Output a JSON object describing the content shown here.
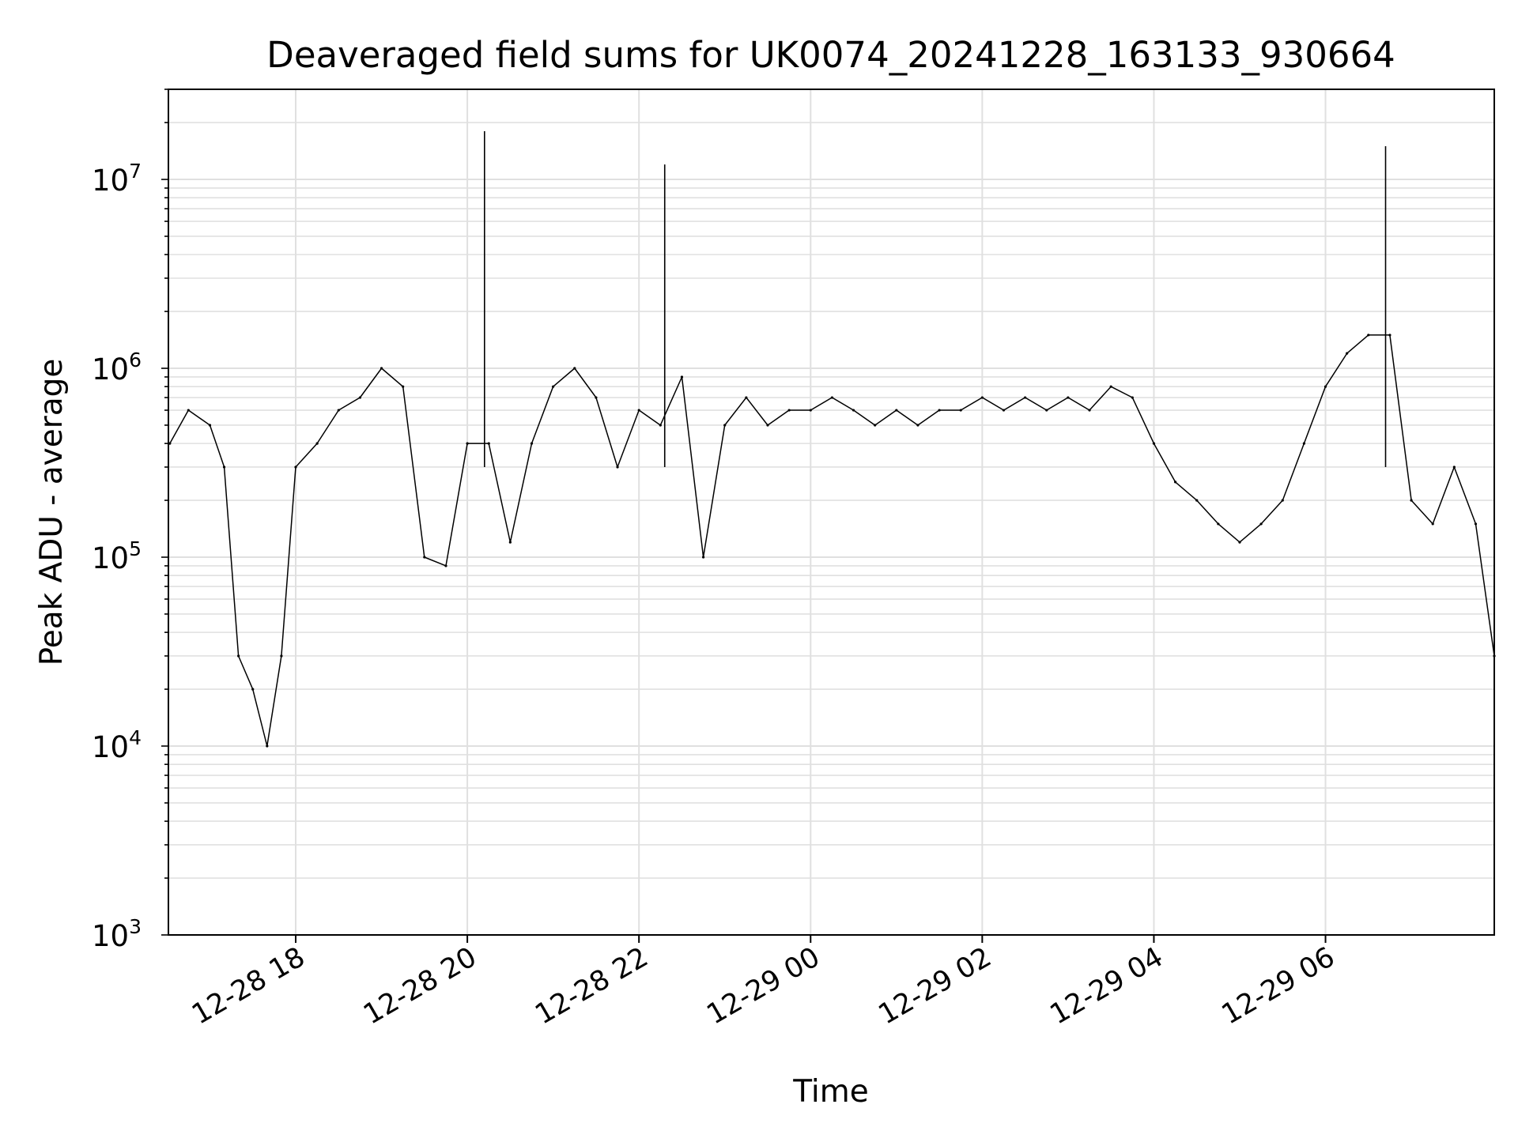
{
  "chart_data": {
    "type": "line",
    "title": "Deaveraged field sums for UK0074_20241228_163133_930664",
    "xlabel": "Time",
    "ylabel": "Peak ADU - average",
    "y_scale": "log",
    "ylim": [
      1000,
      30000000
    ],
    "xlim": [
      "2024-12-28 16:31",
      "2024-12-29 07:58"
    ],
    "x_ticks": [
      {
        "label": "12-28 18",
        "value": "2024-12-28 18:00"
      },
      {
        "label": "12-28 20",
        "value": "2024-12-28 20:00"
      },
      {
        "label": "12-28 22",
        "value": "2024-12-28 22:00"
      },
      {
        "label": "12-29 00",
        "value": "2024-12-29 00:00"
      },
      {
        "label": "12-29 02",
        "value": "2024-12-29 02:00"
      },
      {
        "label": "12-29 04",
        "value": "2024-12-29 04:00"
      },
      {
        "label": "12-29 06",
        "value": "2024-12-29 06:00"
      }
    ],
    "y_ticks": [
      {
        "base": "10",
        "exp": "3",
        "value": 1000
      },
      {
        "base": "10",
        "exp": "4",
        "value": 10000
      },
      {
        "base": "10",
        "exp": "5",
        "value": 100000
      },
      {
        "base": "10",
        "exp": "6",
        "value": 1000000
      },
      {
        "base": "10",
        "exp": "7",
        "value": 10000000
      }
    ],
    "grid": true,
    "legend": "none",
    "line_color": "#000000",
    "series": [
      {
        "x": [
          "2024-12-28 16:32",
          "2024-12-28 16:45",
          "2024-12-28 17:00",
          "2024-12-28 17:10",
          "2024-12-28 17:20",
          "2024-12-28 17:30",
          "2024-12-28 17:40",
          "2024-12-28 17:50",
          "2024-12-28 18:00",
          "2024-12-28 18:15",
          "2024-12-28 18:30",
          "2024-12-28 18:45",
          "2024-12-28 19:00",
          "2024-12-28 19:15",
          "2024-12-28 19:30",
          "2024-12-28 19:45",
          "2024-12-28 20:00",
          "2024-12-28 20:15",
          "2024-12-28 20:30",
          "2024-12-28 20:45",
          "2024-12-28 21:00",
          "2024-12-28 21:15",
          "2024-12-28 21:30",
          "2024-12-28 21:45",
          "2024-12-28 22:00",
          "2024-12-28 22:15",
          "2024-12-28 22:30",
          "2024-12-28 22:45",
          "2024-12-28 23:00",
          "2024-12-28 23:15",
          "2024-12-28 23:30",
          "2024-12-28 23:45",
          "2024-12-29 00:00",
          "2024-12-29 00:15",
          "2024-12-29 00:30",
          "2024-12-29 00:45",
          "2024-12-29 01:00",
          "2024-12-29 01:15",
          "2024-12-29 01:30",
          "2024-12-29 01:45",
          "2024-12-29 02:00",
          "2024-12-29 02:15",
          "2024-12-29 02:30",
          "2024-12-29 02:45",
          "2024-12-29 03:00",
          "2024-12-29 03:15",
          "2024-12-29 03:30",
          "2024-12-29 03:45",
          "2024-12-29 04:00",
          "2024-12-29 04:15",
          "2024-12-29 04:30",
          "2024-12-29 04:45",
          "2024-12-29 05:00",
          "2024-12-29 05:15",
          "2024-12-29 05:30",
          "2024-12-29 05:45",
          "2024-12-29 06:00",
          "2024-12-29 06:15",
          "2024-12-29 06:30",
          "2024-12-29 06:45",
          "2024-12-29 07:00",
          "2024-12-29 07:15",
          "2024-12-29 07:30",
          "2024-12-29 07:45",
          "2024-12-29 07:58"
        ],
        "y": [
          400000,
          600000,
          500000,
          300000,
          30000,
          20000,
          10000,
          30000,
          300000,
          400000,
          600000,
          700000,
          1000000,
          800000,
          100000,
          90000,
          400000,
          400000,
          120000,
          400000,
          800000,
          1000000,
          700000,
          300000,
          600000,
          500000,
          900000,
          100000,
          500000,
          700000,
          500000,
          600000,
          600000,
          700000,
          600000,
          500000,
          600000,
          500000,
          600000,
          600000,
          700000,
          600000,
          700000,
          600000,
          700000,
          600000,
          800000,
          700000,
          400000,
          250000,
          200000,
          150000,
          120000,
          150000,
          200000,
          400000,
          800000,
          1200000,
          1500000,
          1500000,
          200000,
          150000,
          300000,
          150000,
          30000
        ]
      }
    ],
    "peaks": {
      "x": [
        "2024-12-28 20:12",
        "2024-12-28 22:18",
        "2024-12-29 06:42"
      ],
      "y": [
        18000000,
        12000000,
        15000000
      ]
    }
  }
}
